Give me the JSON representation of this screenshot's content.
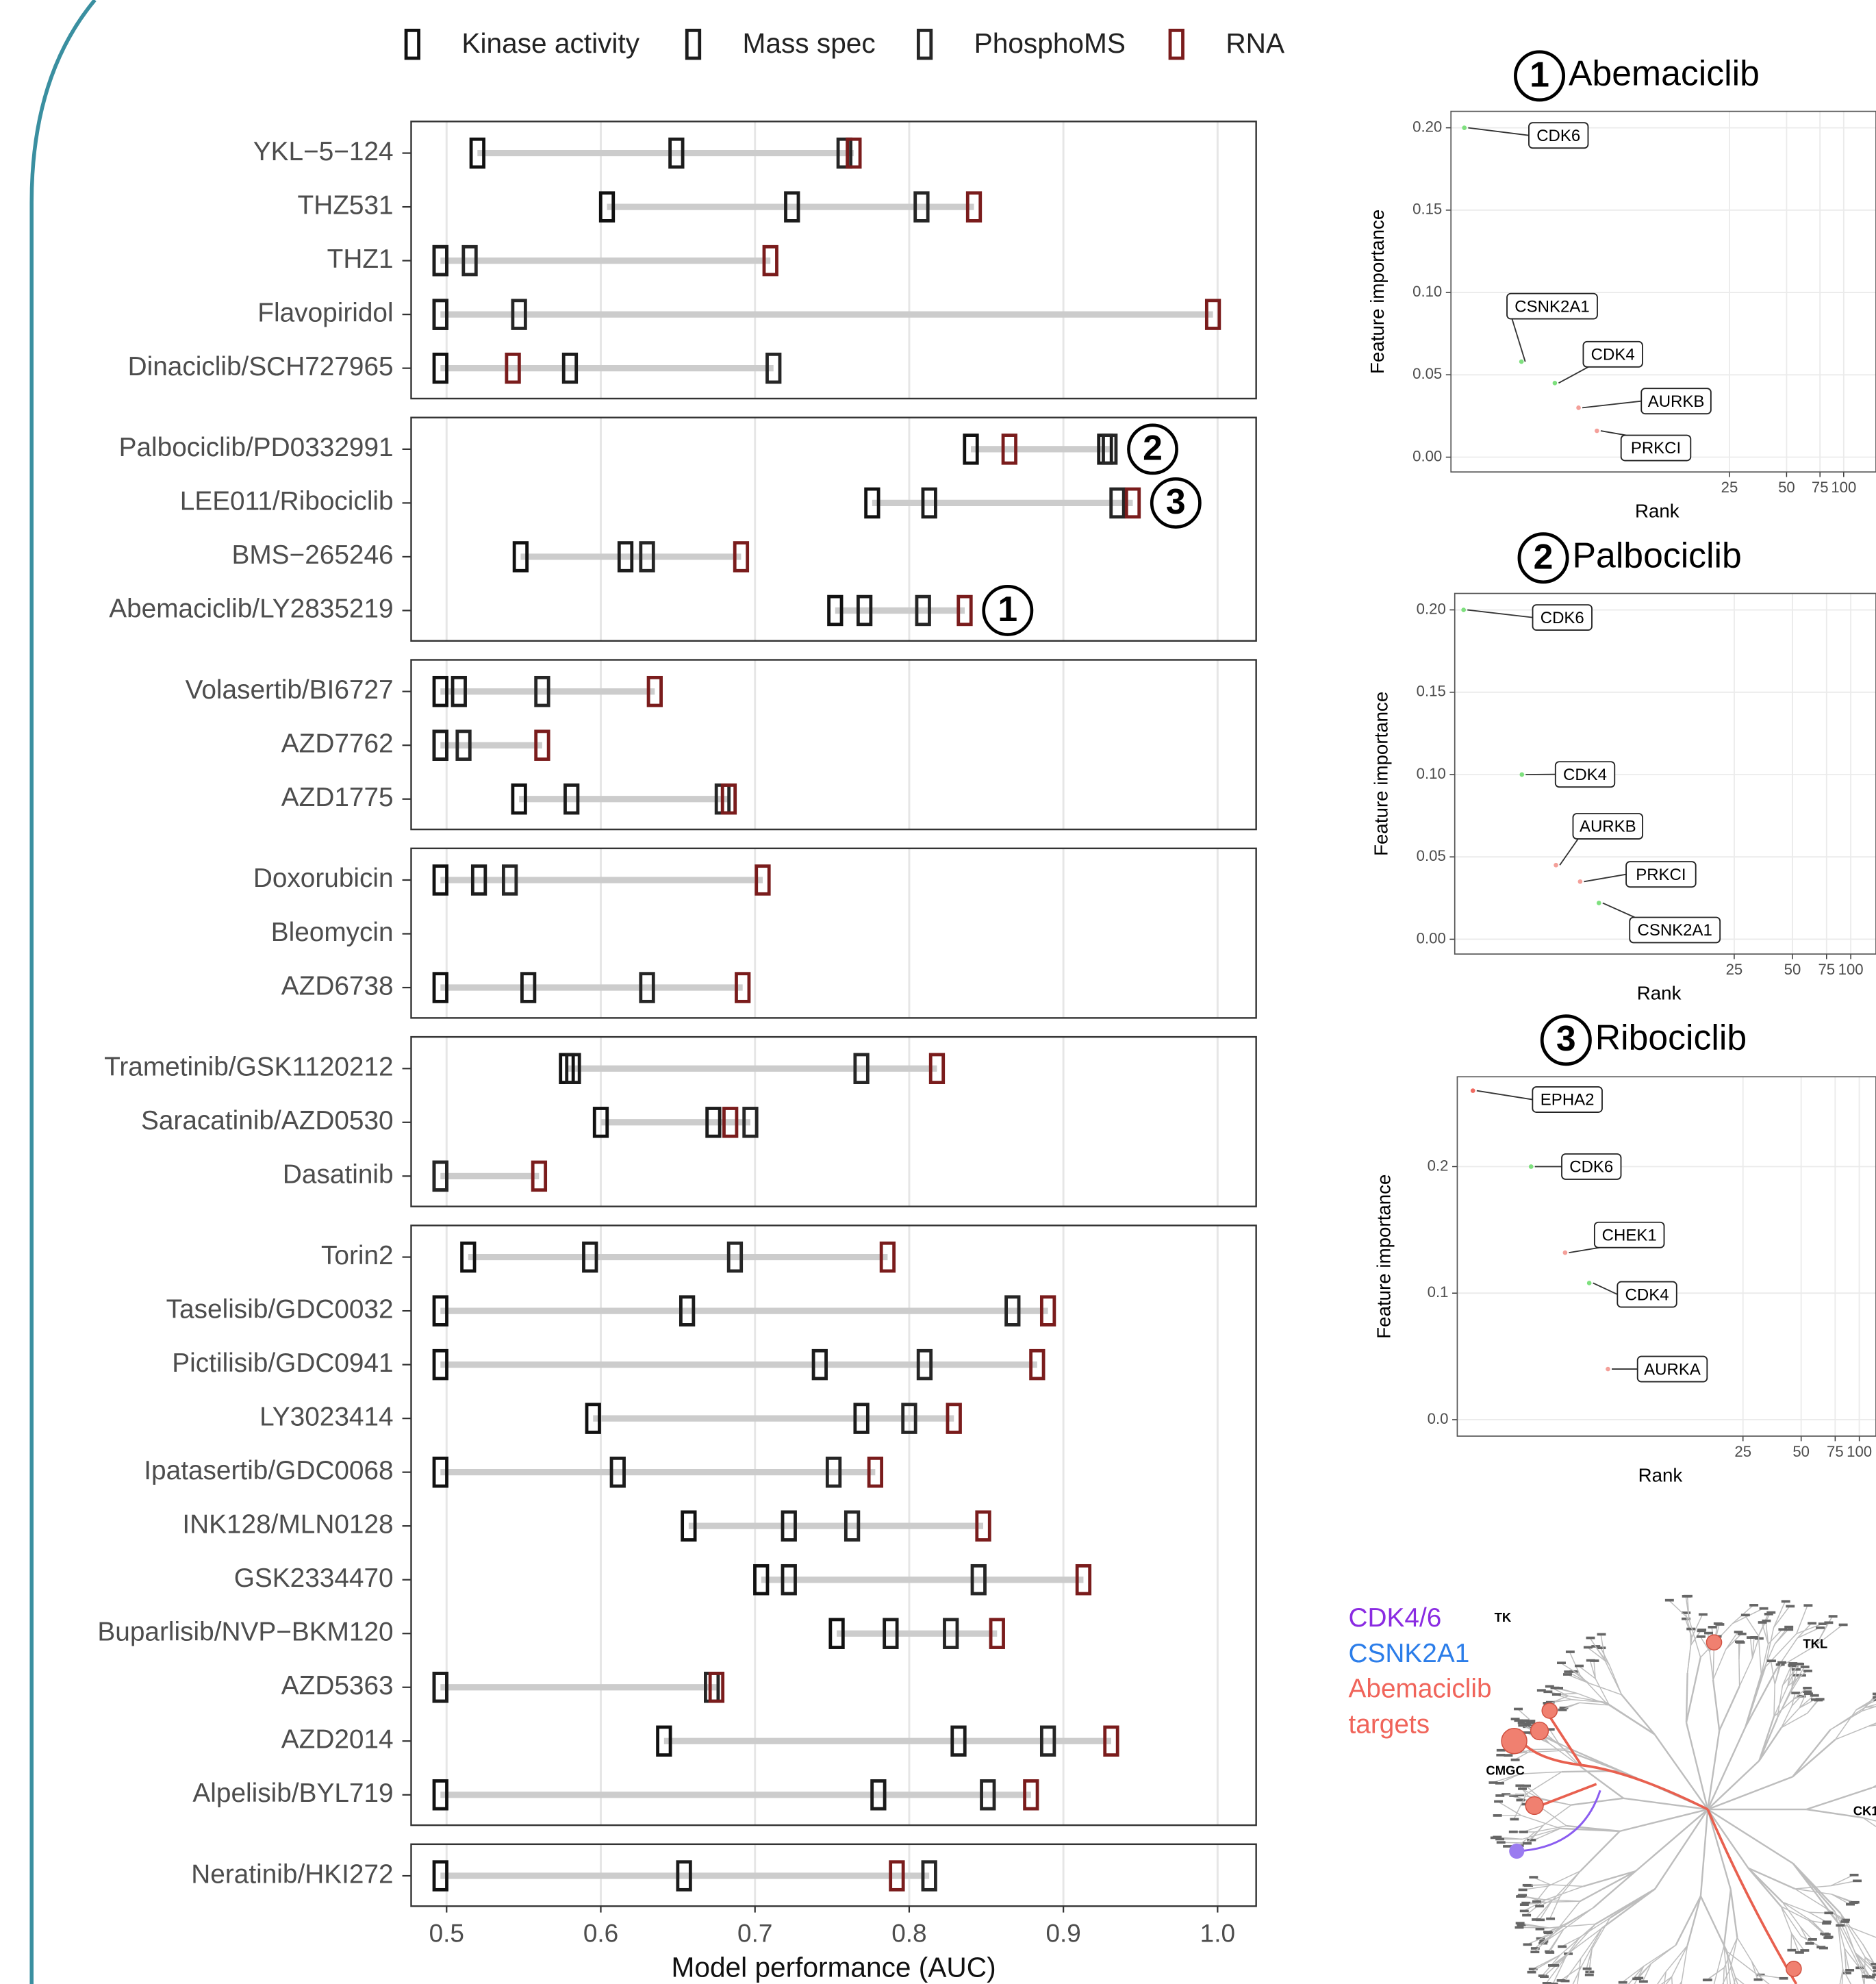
{
  "chart_data": [
    {
      "type": "dumbbell",
      "xlabel": "Model performance (AUC)",
      "categories": [
        "YKL−5−124",
        "THZ531",
        "THZ1",
        "Flavopiridol",
        "Dinaciclib/SCH727965",
        "Palbociclib/PD0332991",
        "LEE011/Ribociclib",
        "BMS−265246",
        "Abemaciclib/LY2835219",
        "Volasertib/BI6727",
        "AZD7762",
        "AZD1775",
        "Doxorubicin",
        "Bleomycin",
        "AZD6738",
        "Trametinib/GSK1120212",
        "Saracatinib/AZD0530",
        "Dasatinib",
        "Torin2",
        "Taselisib/GDC0032",
        "Pictilisib/GDC0941",
        "LY3023414",
        "Ipatasertib/GDC0068",
        "INK128/MLN0128",
        "GSK2334470",
        "Buparlisib/NVP−BKM120",
        "AZD5363",
        "AZD2014",
        "Alpelisib/BYL719",
        "Neratinib/HKI272"
      ],
      "facets": [
        5,
        4,
        3,
        3,
        3,
        11,
        1
      ],
      "series": [
        {
          "name": "Kinase activity",
          "color": "#111111",
          "values": [
            0.52,
            0.604,
            0.496,
            0.496,
            0.496,
            0.84,
            0.776,
            0.548,
            0.752,
            0.496,
            0.496,
            0.547,
            0.496,
            null,
            0.496,
            0.578,
            0.6,
            0.496,
            0.514,
            0.496,
            0.496,
            0.595,
            0.496,
            0.657,
            0.704,
            0.753,
            0.496,
            0.641,
            0.496,
            0.496
          ]
        },
        {
          "name": "Mass spec",
          "color": "#1c1c1c",
          "values": [
            0.649,
            0.724,
            0.496,
            0.496,
            0.58,
            0.927,
            0.813,
            0.616,
            0.771,
            0.508,
            0.496,
            0.581,
            0.521,
            null,
            0.553,
            0.582,
            0.673,
            0.496,
            0.593,
            0.656,
            0.742,
            0.769,
            0.611,
            0.722,
            0.722,
            0.788,
            0.496,
            0.832,
            0.78,
            0.654
          ]
        },
        {
          "name": "PhosphoMS",
          "color": "#262626",
          "values": [
            0.758,
            0.808,
            0.515,
            0.547,
            0.712,
            0.93,
            0.935,
            0.63,
            0.809,
            0.562,
            0.511,
            0.679,
            0.541,
            null,
            0.63,
            0.769,
            0.697,
            0.496,
            0.687,
            0.867,
            0.81,
            0.8,
            0.751,
            0.763,
            0.845,
            0.827,
            0.672,
            0.89,
            0.851,
            0.813
          ]
        },
        {
          "name": "RNA",
          "color": "#7a1c1c",
          "values": [
            0.764,
            0.842,
            0.71,
            0.997,
            0.543,
            0.865,
            0.945,
            0.691,
            0.836,
            0.635,
            0.562,
            0.683,
            0.705,
            null,
            0.692,
            0.818,
            0.684,
            0.56,
            0.786,
            0.89,
            0.883,
            0.829,
            0.778,
            0.848,
            0.913,
            0.857,
            0.675,
            0.931,
            0.879,
            0.792
          ]
        }
      ],
      "xlim": [
        0.477,
        1.025
      ],
      "xticks": [
        0.5,
        0.6,
        0.7,
        0.8,
        0.9,
        {
          "value": 1,
          "label": "1.0"
        }
      ],
      "grid": true,
      "annotations": [
        {
          "label": "2",
          "category": "Palbociclib/PD0332991"
        },
        {
          "label": "3",
          "category": "LEE011/Ribociclib"
        },
        {
          "label": "1",
          "category": "Abemaciclib/LY2835219"
        }
      ]
    },
    {
      "type": "scatter",
      "number": "1",
      "title": "Abemaciclib",
      "xlabel": "Rank",
      "ylabel": "Feature importance",
      "xscale": "log",
      "xlim": [
        0.85,
        148
      ],
      "xticks": [
        25,
        50,
        75,
        100
      ],
      "ylim": [
        -0.009,
        0.21
      ],
      "yticks": [
        {
          "value": 0,
          "label": "0.00"
        },
        0.05,
        {
          "value": 0.1,
          "label": "0.10"
        },
        0.15,
        {
          "value": 0.2,
          "label": "0.20"
        }
      ],
      "grid": true,
      "x": [
        1,
        2,
        3,
        4,
        5
      ],
      "values": [
        0.2,
        0.058,
        0.045,
        0.03,
        0.016
      ],
      "labels": [
        "CDK6",
        "CSNK2A1",
        "CDK4",
        "AURKB",
        "PRKCI"
      ],
      "colors": [
        "#7ee07e",
        "#7ee07e",
        "#7ee07e",
        "#f4a09a",
        "#f4a09a"
      ]
    },
    {
      "type": "scatter",
      "number": "2",
      "title": "Palbociclib",
      "xlabel": "Rank",
      "ylabel": "Feature importance",
      "xscale": "log",
      "xlim": [
        0.9,
        135
      ],
      "xticks": [
        25,
        50,
        75,
        100
      ],
      "ylim": [
        -0.009,
        0.21
      ],
      "yticks": [
        {
          "value": 0,
          "label": "0.00"
        },
        0.05,
        {
          "value": 0.1,
          "label": "0.10"
        },
        0.15,
        {
          "value": 0.2,
          "label": "0.20"
        }
      ],
      "grid": true,
      "x": [
        1,
        2,
        3,
        4,
        5
      ],
      "values": [
        0.2,
        0.1,
        0.045,
        0.035,
        0.022
      ],
      "labels": [
        "CDK6",
        "CDK4",
        "AURKB",
        "PRKCI",
        "CSNK2A1"
      ],
      "colors": [
        "#7ee07e",
        "#7ee07e",
        "#f4a09a",
        "#f4a09a",
        "#7ee07e"
      ]
    },
    {
      "type": "scatter",
      "number": "3",
      "title": "Ribociclib",
      "xlabel": "Rank",
      "ylabel": "Feature importance",
      "xscale": "log",
      "xlim": [
        0.83,
        122
      ],
      "xticks": [
        25,
        50,
        75,
        100
      ],
      "ylim": [
        -0.013,
        0.271
      ],
      "yticks": [
        {
          "value": 0,
          "label": "0.0"
        },
        0.1,
        0.2
      ],
      "grid": true,
      "x": [
        1,
        2,
        3,
        4,
        5
      ],
      "values": [
        0.26,
        0.2,
        0.132,
        0.108,
        0.04
      ],
      "labels": [
        "EPHA2",
        "CDK6",
        "CHEK1",
        "CDK4",
        "AURKA"
      ],
      "colors": [
        "#f06a60",
        "#7ee07e",
        "#f4a09a",
        "#7ee07e",
        "#f4a09a"
      ]
    }
  ],
  "kinome": {
    "groups": [
      "TK",
      "TKL",
      "CMGC",
      "CK1"
    ],
    "legend": [
      {
        "label_lines": [
          "CDK4/6"
        ],
        "color": "#8a2be2"
      },
      {
        "label_lines": [
          "CSNK2A1"
        ],
        "color": "#2b7de9"
      },
      {
        "label_lines": [
          "Abemaciclib",
          "targets"
        ],
        "color": "#f0645a"
      }
    ]
  }
}
